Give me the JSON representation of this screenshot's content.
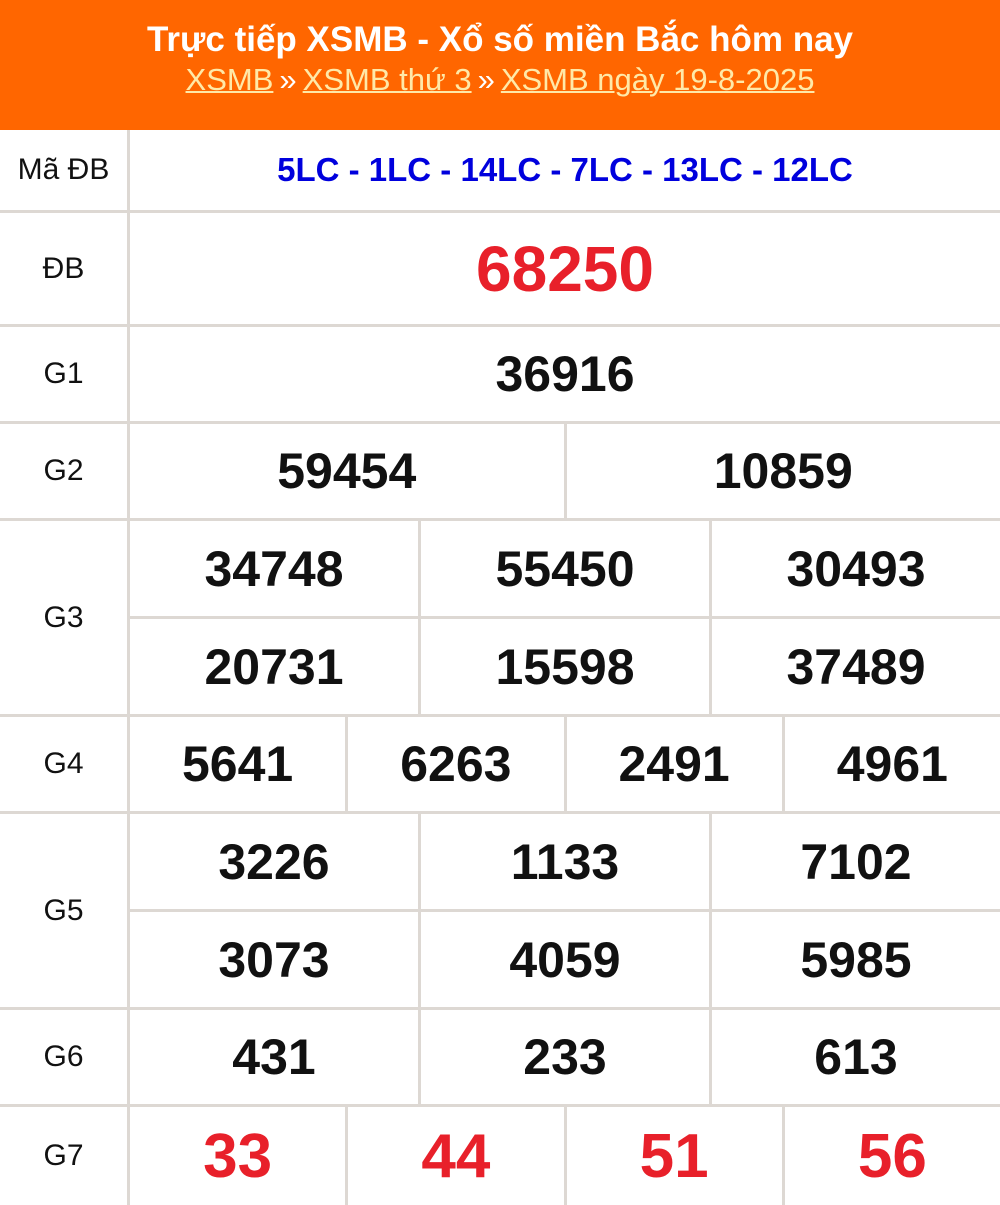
{
  "header": {
    "title": "Trực tiếp XSMB - Xổ số miền Bắc hôm nay",
    "breadcrumb": [
      {
        "label": "XSMB"
      },
      {
        "label": "XSMB thứ 3"
      },
      {
        "label": "XSMB ngày 19-8-2025"
      }
    ],
    "separator": "»"
  },
  "colors": {
    "header_bg": "#ff6600",
    "special": "#e8202a",
    "code": "#0000dd"
  },
  "rows": [
    {
      "label": "Mã ĐB",
      "lines": [
        [
          "5LC - 1LC - 14LC - 7LC - 13LC - 12LC"
        ]
      ]
    },
    {
      "label": "ĐB",
      "lines": [
        [
          "68250"
        ]
      ]
    },
    {
      "label": "G1",
      "lines": [
        [
          "36916"
        ]
      ]
    },
    {
      "label": "G2",
      "lines": [
        [
          "59454",
          "10859"
        ]
      ]
    },
    {
      "label": "G3",
      "lines": [
        [
          "34748",
          "55450",
          "30493"
        ],
        [
          "20731",
          "15598",
          "37489"
        ]
      ]
    },
    {
      "label": "G4",
      "lines": [
        [
          "5641",
          "6263",
          "2491",
          "4961"
        ]
      ]
    },
    {
      "label": "G5",
      "lines": [
        [
          "3226",
          "1133",
          "7102"
        ],
        [
          "3073",
          "4059",
          "5985"
        ]
      ]
    },
    {
      "label": "G6",
      "lines": [
        [
          "431",
          "233",
          "613"
        ]
      ]
    },
    {
      "label": "G7",
      "lines": [
        [
          "33",
          "44",
          "51",
          "56"
        ]
      ]
    }
  ]
}
